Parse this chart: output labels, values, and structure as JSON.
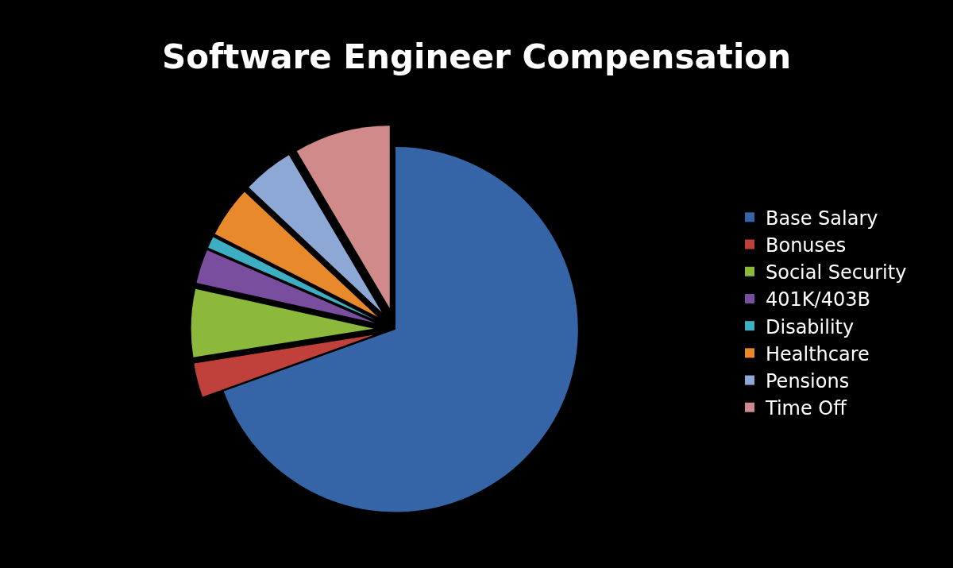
{
  "chart_data": {
    "type": "pie",
    "title": "Software Engineer Compensation",
    "categories": [
      "Base Salary",
      "Bonuses",
      "Social Security",
      "401K/403B",
      "Disability",
      "Healthcare",
      "Pensions",
      "Time Off"
    ],
    "values": [
      69.5,
      3,
      6,
      3,
      1,
      4.5,
      4.5,
      8.5
    ],
    "colors": [
      "#3565a6",
      "#c0403b",
      "#8cb83c",
      "#7a4e9e",
      "#3eaec2",
      "#e8892c",
      "#8ea8d6",
      "#d08a8a"
    ],
    "legend": "right"
  }
}
